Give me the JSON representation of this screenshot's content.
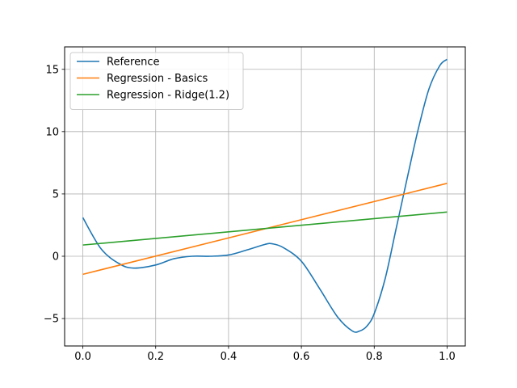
{
  "chart_data": {
    "type": "line",
    "title": "",
    "xlabel": "",
    "ylabel": "",
    "xlim": [
      -0.05,
      1.05
    ],
    "ylim": [
      -7.2,
      16.8
    ],
    "grid": true,
    "legend_position": "top-left",
    "x_ticks": [
      {
        "value": 0.0,
        "label": "0.0"
      },
      {
        "value": 0.2,
        "label": "0.2"
      },
      {
        "value": 0.4,
        "label": "0.4"
      },
      {
        "value": 0.6,
        "label": "0.6"
      },
      {
        "value": 0.8,
        "label": "0.8"
      },
      {
        "value": 1.0,
        "label": "1.0"
      }
    ],
    "y_ticks": [
      {
        "value": -5,
        "label": "−5"
      },
      {
        "value": 0,
        "label": "0"
      },
      {
        "value": 5,
        "label": "5"
      },
      {
        "value": 10,
        "label": "10"
      },
      {
        "value": 15,
        "label": "15"
      }
    ],
    "series": [
      {
        "name": "Reference",
        "color": "#1f77b4",
        "x": [
          0.0,
          0.05,
          0.1,
          0.14,
          0.2,
          0.25,
          0.3,
          0.35,
          0.4,
          0.45,
          0.5,
          0.52,
          0.55,
          0.6,
          0.65,
          0.7,
          0.74,
          0.76,
          0.78,
          0.8,
          0.83,
          0.86,
          0.89,
          0.92,
          0.95,
          0.98,
          1.0
        ],
        "y": [
          3.1,
          0.6,
          -0.6,
          -0.95,
          -0.7,
          -0.2,
          0.0,
          0.0,
          0.1,
          0.5,
          0.95,
          1.0,
          0.7,
          -0.4,
          -2.6,
          -4.9,
          -6.0,
          -6.0,
          -5.6,
          -4.6,
          -1.8,
          2.2,
          6.2,
          10.1,
          13.4,
          15.3,
          15.8
        ]
      },
      {
        "name": "Regression - Basics",
        "color": "#ff7f0e",
        "x": [
          0.0,
          1.0
        ],
        "y": [
          -1.45,
          5.85
        ]
      },
      {
        "name": "Regression - Ridge(1.2)",
        "color": "#2ca02c",
        "x": [
          0.0,
          1.0
        ],
        "y": [
          0.9,
          3.55
        ]
      }
    ]
  }
}
